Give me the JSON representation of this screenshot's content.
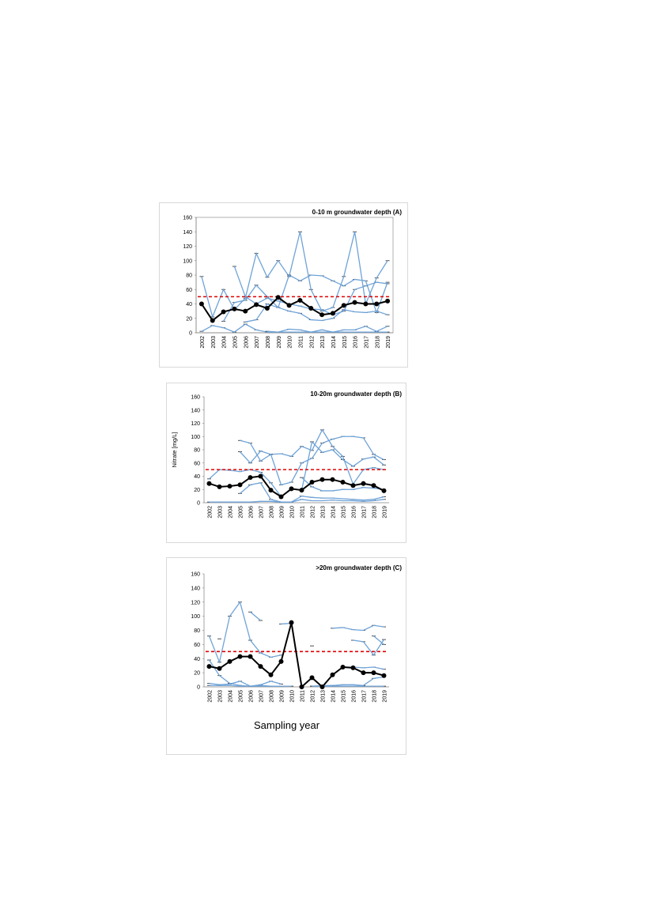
{
  "colors": {
    "mean": "#000000",
    "wells": "#6fa3d8",
    "threshold": "#e00000",
    "grid": "#e0e0e0"
  },
  "x_title": "Sampling year",
  "chart_data": [
    {
      "type": "line",
      "title": "0-10 m groundwater depth (A)",
      "ylabel": "",
      "categories": [
        "2002",
        "2003",
        "2004",
        "2005",
        "2006",
        "2007",
        "2008",
        "2009",
        "2010",
        "2011",
        "2012",
        "2013",
        "2014",
        "2015",
        "2016",
        "2017",
        "2018",
        "2019"
      ],
      "ylim": [
        0,
        160
      ],
      "yticks": [
        0,
        20,
        40,
        60,
        80,
        100,
        120,
        140,
        160
      ],
      "threshold": 50,
      "mean": [
        40,
        17,
        29,
        33,
        30,
        39,
        34,
        49,
        38,
        45,
        34,
        25,
        27,
        38,
        42,
        40,
        40,
        44
      ],
      "wells": [
        [
          78,
          22,
          60,
          32,
          48,
          110,
          77,
          100,
          78,
          140,
          60,
          30,
          35,
          78,
          140,
          40,
          76,
          100
        ],
        [
          null,
          null,
          16,
          42,
          45,
          66,
          50,
          35,
          80,
          72,
          80,
          79,
          72,
          65,
          74,
          72,
          28,
          70
        ],
        [
          2,
          10,
          7,
          1,
          12,
          4,
          1,
          1,
          5,
          4,
          1,
          4,
          1,
          4,
          4,
          9,
          2,
          9
        ],
        [
          null,
          null,
          null,
          null,
          15,
          18,
          40,
          35,
          30,
          27,
          18,
          17,
          20,
          32,
          29,
          28,
          30,
          25
        ],
        [
          null,
          null,
          null,
          92,
          50,
          40,
          48,
          44,
          40,
          37,
          33,
          32,
          25,
          30,
          60,
          65,
          70,
          68
        ],
        [
          null,
          null,
          null,
          null,
          null,
          null,
          2,
          1,
          1,
          1,
          1,
          1,
          1,
          1,
          1,
          1,
          1,
          1
        ]
      ]
    },
    {
      "type": "line",
      "title": "10-20m groundwater depth (B)",
      "ylabel": "Nitrate [mg/L]",
      "categories": [
        "2002",
        "2003",
        "2004",
        "2005",
        "2006",
        "2007",
        "2008",
        "2009",
        "2010",
        "2011",
        "2012",
        "2013",
        "2014",
        "2015",
        "2016",
        "2017",
        "2018",
        "2019"
      ],
      "ylim": [
        0,
        160
      ],
      "yticks": [
        0,
        20,
        40,
        60,
        80,
        100,
        120,
        140,
        160
      ],
      "threshold": 50,
      "mean": [
        29,
        24,
        25,
        27,
        38,
        40,
        19,
        9,
        21,
        19,
        31,
        35,
        35,
        31,
        26,
        29,
        26,
        18
      ],
      "wells": [
        [
          null,
          null,
          null,
          94,
          90,
          63,
          73,
          74,
          70,
          85,
          79,
          110,
          85,
          70,
          28,
          50,
          53,
          50
        ],
        [
          null,
          null,
          null,
          77,
          60,
          78,
          73,
          27,
          31,
          60,
          67,
          90,
          96,
          100,
          100,
          98,
          73,
          65
        ],
        [
          36,
          50,
          49,
          47,
          50,
          46,
          30,
          9,
          21,
          19,
          92,
          76,
          80,
          65,
          55,
          66,
          69,
          57
        ],
        [
          1,
          1,
          1,
          1,
          1,
          2,
          2,
          1,
          1,
          10,
          8,
          7,
          7,
          6,
          5,
          4,
          5,
          9
        ],
        [
          null,
          null,
          null,
          14,
          27,
          30,
          5,
          1,
          1,
          5,
          3,
          3,
          4,
          3,
          3,
          2,
          3,
          5
        ],
        [
          null,
          null,
          null,
          null,
          null,
          null,
          null,
          null,
          null,
          38,
          24,
          18,
          18,
          20,
          20,
          23,
          22,
          20
        ]
      ]
    },
    {
      "type": "line",
      "title": ">20m groundwater depth (C)",
      "ylabel": "",
      "categories": [
        "2002",
        "2003",
        "2004",
        "2005",
        "2006",
        "2007",
        "2008",
        "2009",
        "2010",
        "2011",
        "2012",
        "2013",
        "2014",
        "2015",
        "2016",
        "2017",
        "2018",
        "2019"
      ],
      "ylim": [
        0,
        160
      ],
      "yticks": [
        0,
        20,
        40,
        60,
        80,
        100,
        120,
        140,
        160
      ],
      "threshold": 50,
      "mean": [
        29,
        26,
        36,
        43,
        43,
        29,
        17,
        36,
        91,
        0,
        13,
        0,
        17,
        28,
        27,
        20,
        20,
        16
      ],
      "wells": [
        [
          72,
          35,
          100,
          120,
          66,
          48,
          42,
          45,
          null,
          null,
          null,
          null,
          null,
          null,
          null,
          null,
          72,
          60
        ],
        [
          null,
          68,
          null,
          null,
          106,
          94,
          null,
          89,
          90,
          null,
          58,
          null,
          83,
          84,
          81,
          80,
          87,
          85
        ],
        [
          5,
          3,
          4,
          8,
          1,
          3,
          8,
          4,
          null,
          null,
          null,
          null,
          null,
          null,
          66,
          64,
          45,
          67
        ],
        [
          38,
          16,
          5,
          2,
          1,
          1,
          1,
          1,
          null,
          null,
          null,
          null,
          null,
          28,
          28,
          27,
          28,
          25
        ],
        [
          2,
          2,
          2,
          1,
          1,
          2,
          1,
          1,
          1,
          null,
          1,
          1,
          1,
          1,
          1,
          1,
          1,
          1
        ],
        [
          null,
          null,
          null,
          null,
          null,
          null,
          null,
          null,
          null,
          null,
          1,
          2,
          2,
          3,
          3,
          2,
          12,
          14
        ]
      ]
    }
  ]
}
